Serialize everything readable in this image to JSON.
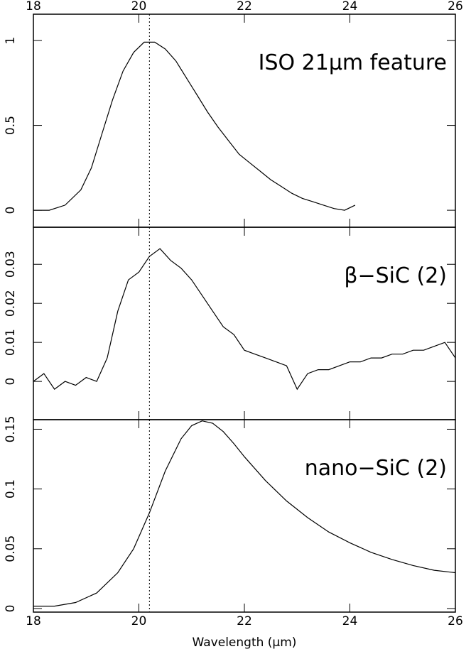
{
  "chart_data": [
    {
      "type": "line",
      "annotation": "ISO 21μm feature",
      "xlim": [
        18,
        26
      ],
      "xticks": [
        18,
        20,
        22,
        24,
        26
      ],
      "ylim": [
        -0.1,
        1.155
      ],
      "yticks": [
        0,
        0.5,
        1
      ],
      "vline": 20.2,
      "x": [
        18.0,
        18.3,
        18.6,
        18.9,
        19.1,
        19.3,
        19.5,
        19.7,
        19.9,
        20.1,
        20.3,
        20.5,
        20.7,
        20.9,
        21.1,
        21.3,
        21.5,
        21.7,
        21.9,
        22.1,
        22.3,
        22.5,
        22.7,
        22.9,
        23.1,
        23.3,
        23.5,
        23.7,
        23.9,
        24.1
      ],
      "values": [
        0.0,
        0.0,
        0.03,
        0.12,
        0.25,
        0.45,
        0.65,
        0.82,
        0.93,
        0.99,
        0.99,
        0.95,
        0.88,
        0.78,
        0.68,
        0.58,
        0.49,
        0.41,
        0.33,
        0.28,
        0.23,
        0.18,
        0.14,
        0.1,
        0.07,
        0.05,
        0.03,
        0.01,
        0.0,
        0.03
      ]
    },
    {
      "type": "line",
      "annotation": "β−SiC (2)",
      "xlim": [
        18,
        26
      ],
      "ylim": [
        -0.0098,
        0.0395
      ],
      "yticks": [
        0,
        0.01,
        0.02,
        0.03
      ],
      "vline": 20.2,
      "x": [
        18.0,
        18.2,
        18.4,
        18.6,
        18.8,
        19.0,
        19.2,
        19.4,
        19.6,
        19.8,
        20.0,
        20.2,
        20.4,
        20.6,
        20.8,
        21.0,
        21.2,
        21.4,
        21.6,
        21.8,
        22.0,
        22.2,
        22.4,
        22.6,
        22.8,
        23.0,
        23.2,
        23.4,
        23.6,
        23.8,
        24.0,
        24.2,
        24.4,
        24.6,
        24.8,
        25.0,
        25.2,
        25.4,
        25.6,
        25.8,
        26.0
      ],
      "values": [
        0.0,
        0.002,
        -0.002,
        0.0,
        -0.001,
        0.001,
        0.0,
        0.006,
        0.018,
        0.026,
        0.028,
        0.032,
        0.034,
        0.031,
        0.029,
        0.026,
        0.022,
        0.018,
        0.014,
        0.012,
        0.008,
        0.007,
        0.006,
        0.005,
        0.004,
        -0.002,
        0.002,
        0.003,
        0.003,
        0.004,
        0.005,
        0.005,
        0.006,
        0.006,
        0.007,
        0.007,
        0.008,
        0.008,
        0.009,
        0.01,
        0.006
      ]
    },
    {
      "type": "line",
      "annotation": "nano−SiC (2)",
      "xlabel": "Wavelength (μm)",
      "xlim": [
        18,
        26
      ],
      "xticks": [
        18,
        20,
        22,
        24,
        26
      ],
      "ylim": [
        -0.003,
        0.158
      ],
      "yticks": [
        0,
        0.05,
        0.1,
        0.15
      ],
      "vline": 20.2,
      "x": [
        18.0,
        18.4,
        18.8,
        19.2,
        19.6,
        19.9,
        20.2,
        20.5,
        20.8,
        21.0,
        21.2,
        21.4,
        21.6,
        21.8,
        22.0,
        22.4,
        22.8,
        23.2,
        23.6,
        24.0,
        24.4,
        24.8,
        25.2,
        25.6,
        26.0
      ],
      "values": [
        0.002,
        0.002,
        0.005,
        0.013,
        0.03,
        0.05,
        0.08,
        0.115,
        0.142,
        0.153,
        0.157,
        0.155,
        0.148,
        0.138,
        0.127,
        0.107,
        0.09,
        0.076,
        0.064,
        0.055,
        0.047,
        0.041,
        0.036,
        0.032,
        0.03
      ]
    }
  ]
}
